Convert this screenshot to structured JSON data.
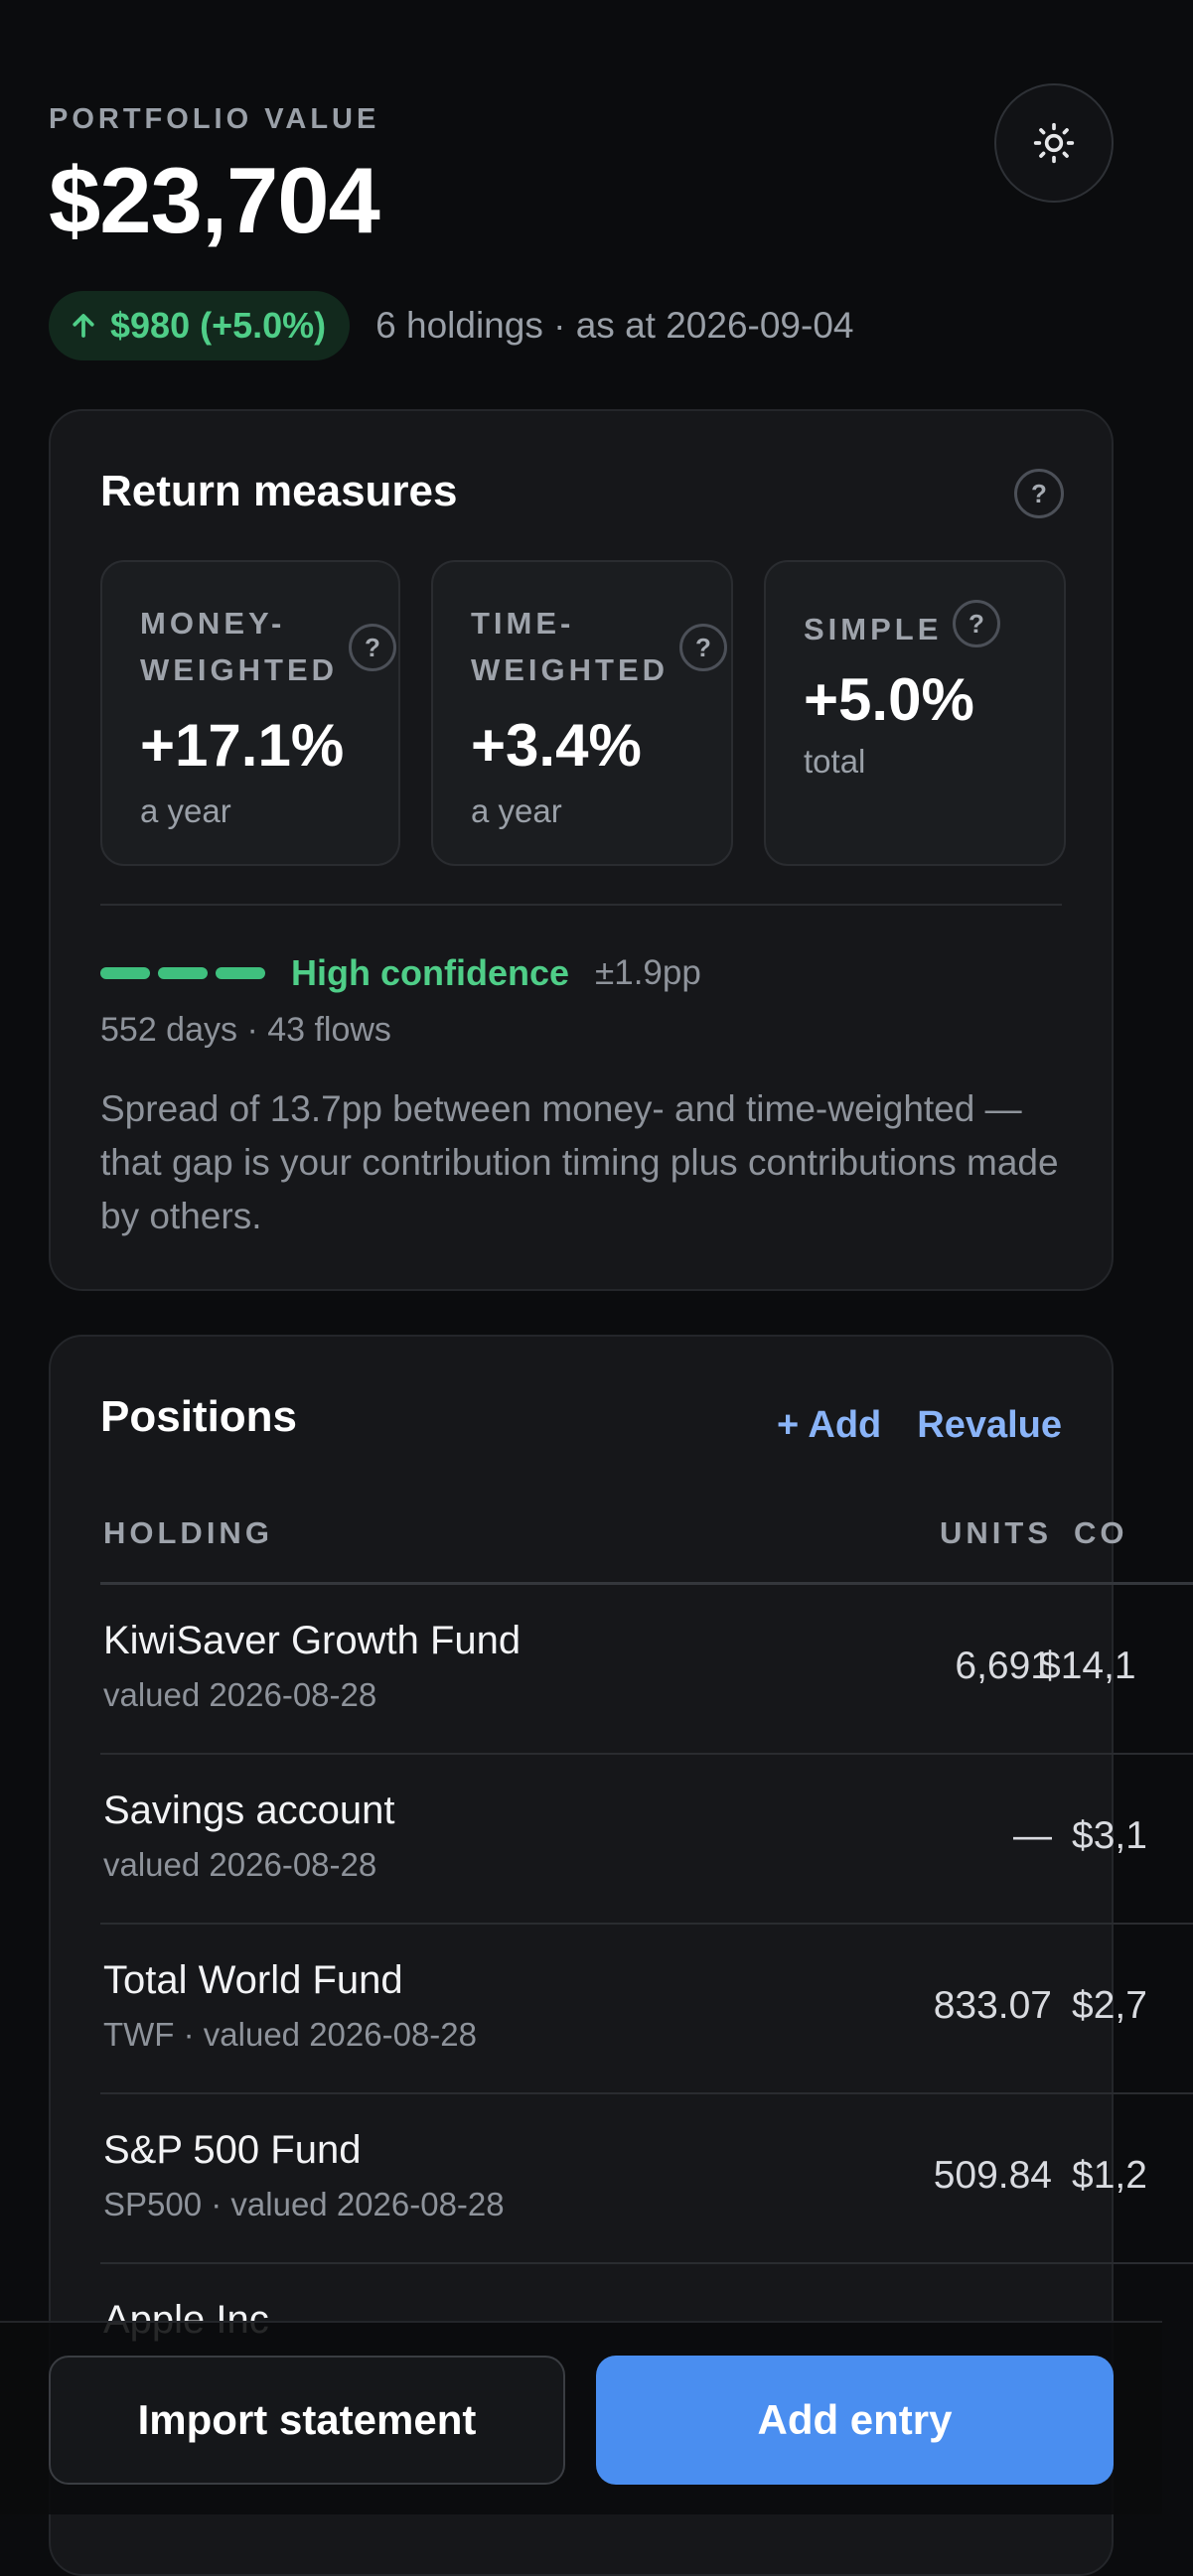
{
  "header": {
    "eyebrow": "PORTFOLIO VALUE",
    "total_value": "$23,704",
    "change": "$980 (+5.0%)",
    "subtext": "6 holdings · as at 2026-09-04",
    "theme_toggle_icon": "sun-icon"
  },
  "returns": {
    "title": "Return measures",
    "measures": [
      {
        "label": "MONEY-WEIGHTED",
        "value": "+17.1%",
        "sub": "a year"
      },
      {
        "label": "TIME-WEIGHTED",
        "value": "+3.4%",
        "sub": "a year"
      },
      {
        "label": "SIMPLE",
        "value": "+5.0%",
        "sub": "total"
      }
    ],
    "help_glyph": "?",
    "confidence": {
      "label": "High confidence",
      "range": "±1.9pp",
      "meta": "552 days · 43 flows",
      "note": "Spread of 13.7pp between money- and time-weighted — that gap is your contribution timing plus contributions made by others."
    }
  },
  "positions": {
    "title": "Positions",
    "add_label": "+ Add",
    "revalue_label": "Revalue",
    "columns": [
      "HOLDING",
      "UNITS",
      "CO"
    ],
    "rows": [
      {
        "name": "KiwiSaver Growth Fund",
        "sub": "valued 2026-08-28",
        "units": "6,691",
        "cost": "$14,1"
      },
      {
        "name": "Savings account",
        "sub": "valued 2026-08-28",
        "units": "—",
        "cost": "$3,1"
      },
      {
        "name": "Total World Fund",
        "sub": "TWF · valued 2026-08-28",
        "units": "833.07",
        "cost": "$2,7"
      },
      {
        "name": "S&P 500 Fund",
        "sub": "SP500 · valued 2026-08-28",
        "units": "509.84",
        "cost": "$1,2"
      },
      {
        "name": "Apple Inc",
        "sub": "",
        "units": "",
        "cost": ""
      }
    ]
  },
  "actions": {
    "import_label": "Import statement",
    "add_entry_label": "Add entry"
  },
  "colors": {
    "background": "#0b0c0e",
    "card": "#16171a",
    "positive": "#4fce88",
    "accent": "#4a8ef0",
    "link": "#8ab4f8"
  }
}
